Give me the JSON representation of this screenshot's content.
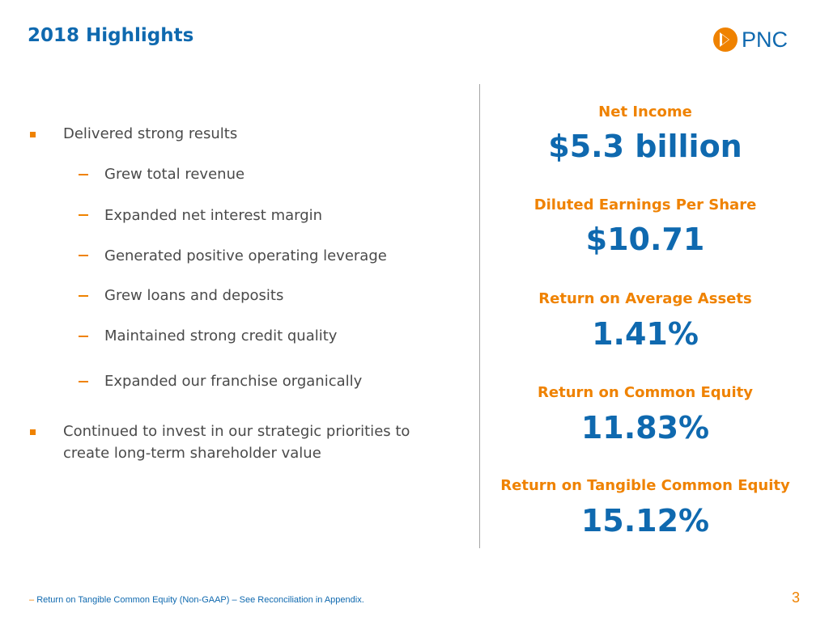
{
  "slide": {
    "title": "2018 Highlights",
    "page_number": "3"
  },
  "logo": {
    "text": "PNC",
    "icon": "pnc-logo-icon",
    "colors": {
      "orange": "#ef8200",
      "blue": "#0f69af"
    }
  },
  "bullets": {
    "main": [
      {
        "text": "Delivered strong results",
        "sub": [
          "Grew total revenue",
          "Expanded net interest margin",
          "Generated positive operating leverage",
          "Grew loans and deposits",
          "Maintained strong credit quality",
          "Expanded our franchise organically"
        ]
      },
      {
        "lines": [
          "Continued to invest in our strategic priorities to",
          "create long-term shareholder value"
        ]
      }
    ]
  },
  "metrics": [
    {
      "label": "Net Income",
      "value": "$5.3 billion"
    },
    {
      "label": "Diluted Earnings Per Share",
      "value": "$10.71"
    },
    {
      "label": "Return on Average Assets",
      "value": "1.41%"
    },
    {
      "label": "Return on Common Equity",
      "value": "11.83%"
    },
    {
      "label": "Return on Tangible Common Equity",
      "value": "15.12%"
    }
  ],
  "footnote": "Return on Tangible Common Equity (Non-GAAP) – See Reconciliation in Appendix.",
  "colors": {
    "title_blue": "#0f69af",
    "accent_orange": "#ef8200",
    "body_gray": "#4a4a4a",
    "divider_gray": "#a6a6a6"
  }
}
